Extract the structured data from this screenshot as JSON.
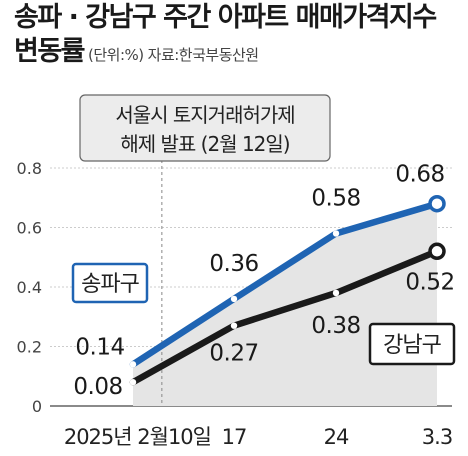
{
  "title": {
    "line1": "송파 · 강남구 주간 아파트 매매가격지수",
    "line2": "변동률",
    "unit": "(단위:%)",
    "source": "자료:한국부동산원"
  },
  "annotation": {
    "line1": "서울시 토지거래허가제",
    "line2": "해제 발표 (2월 12일)"
  },
  "colors": {
    "songpa": "#1f64b3",
    "gangnam": "#1a1a1a",
    "area": "#e5e5e5",
    "grid": "#cccccc"
  },
  "chart_data": {
    "type": "line",
    "x": [
      "2025년 2월10일",
      "17",
      "24",
      "3.3"
    ],
    "ylim": [
      0,
      0.8
    ],
    "yticks": [
      "0",
      "0.2",
      "0.4",
      "0.6",
      "0.8"
    ],
    "series": [
      {
        "name": "송파구",
        "values": [
          0.14,
          0.36,
          0.58,
          0.68
        ],
        "labels": [
          "0.14",
          "0.36",
          "0.58",
          "0.68"
        ]
      },
      {
        "name": "강남구",
        "values": [
          0.08,
          0.27,
          0.38,
          0.52
        ],
        "labels": [
          "0.08",
          "0.27",
          "0.38",
          "0.52"
        ]
      }
    ]
  }
}
